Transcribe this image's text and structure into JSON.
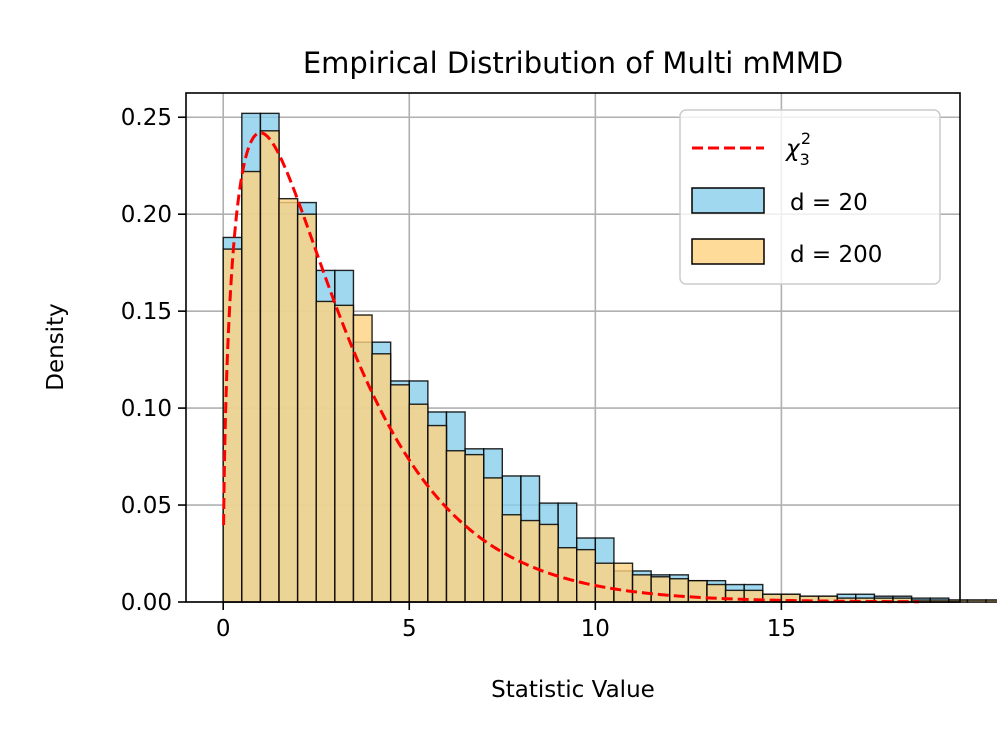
{
  "chart_data": {
    "type": "histogram",
    "title": "Empirical Distribution of Multi mMMD",
    "xlabel": "Statistic Value",
    "ylabel": "Density",
    "xlim": [
      -1,
      19.8
    ],
    "ylim": [
      0,
      0.2625
    ],
    "xticks": [
      0,
      5,
      10,
      15
    ],
    "xtick_labels": [
      "0",
      "5",
      "10",
      "15"
    ],
    "yticks": [
      0.0,
      0.05,
      0.1,
      0.15,
      0.2,
      0.25
    ],
    "ytick_labels": [
      "0.00",
      "0.05",
      "0.10",
      "0.15",
      "0.20",
      "0.25"
    ],
    "grid": true,
    "legend_position": "top-right",
    "legend": {
      "curve_label": "χ",
      "curve_sub": "3",
      "curve_sup": "2"
    },
    "curve": {
      "name": "chi-square df=3",
      "color": "#ff0000",
      "df": 3,
      "x_range": [
        0.01,
        18.7
      ]
    },
    "series": [
      {
        "name": "d = 20",
        "label": "d = 20",
        "color": "#87ceeb",
        "opacity": 0.8,
        "bin_start": 0,
        "bin_width": 0.5,
        "values": [
          0.188,
          0.252,
          0.252,
          0.206,
          0.206,
          0.171,
          0.171,
          0.134,
          0.134,
          0.114,
          0.114,
          0.098,
          0.098,
          0.079,
          0.079,
          0.065,
          0.065,
          0.051,
          0.051,
          0.033,
          0.033,
          0.016,
          0.016,
          0.014,
          0.014,
          0.011,
          0.011,
          0.009,
          0.009,
          0.004,
          0.004,
          0.003,
          0.003,
          0.004,
          0.004,
          0.003,
          0.003,
          0.002,
          0.002,
          0.001,
          0.001,
          0.001,
          0.001,
          0.001,
          0.001,
          0.0,
          0.0,
          0.0,
          0.0,
          0.0
        ]
      },
      {
        "name": "d = 200",
        "label": "d = 200",
        "color": "#ffd27f",
        "opacity": 0.8,
        "bin_start": 0,
        "bin_width": 0.5,
        "values": [
          0.182,
          0.222,
          0.243,
          0.208,
          0.2,
          0.155,
          0.153,
          0.148,
          0.128,
          0.112,
          0.102,
          0.091,
          0.078,
          0.076,
          0.064,
          0.045,
          0.042,
          0.04,
          0.028,
          0.027,
          0.02,
          0.02,
          0.014,
          0.013,
          0.012,
          0.011,
          0.009,
          0.006,
          0.006,
          0.004,
          0.004,
          0.003,
          0.003,
          0.002,
          0.002,
          0.002,
          0.002,
          0.001,
          0.001,
          0.001,
          0.001,
          0.001,
          0.0,
          0.0,
          0.0,
          0.0,
          0.0,
          0.0,
          0.0,
          0.0
        ]
      }
    ]
  }
}
